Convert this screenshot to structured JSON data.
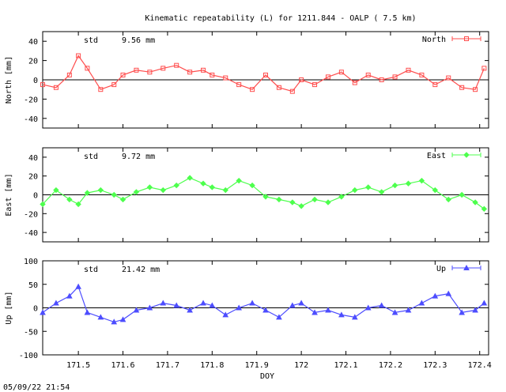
{
  "chart_data": {
    "type": "scatter",
    "title": "Kinematic repeatability (L) for 1211.844 - OALP  (  7.5 km)",
    "xlabel": "DOY",
    "footer": "05/09/22 21:54",
    "xlim": [
      171.42,
      172.42
    ],
    "xticks": [
      "171.5",
      "171.6",
      "171.7",
      "171.8",
      "171.9",
      "172",
      "172.1",
      "172.2",
      "172.3",
      "172.4"
    ],
    "xtick_values": [
      171.5,
      171.6,
      171.7,
      171.8,
      171.9,
      172.0,
      172.1,
      172.2,
      172.3,
      172.4
    ],
    "panels": [
      {
        "name": "North",
        "ylabel": "North [mm]",
        "ylim": [
          -50,
          50
        ],
        "yticks": [
          40,
          20,
          0,
          -20,
          -40
        ],
        "std_label": "std",
        "std_value": "9.56 mm",
        "color": "#ff4d4d",
        "marker": "square",
        "x": [
          171.42,
          171.45,
          171.48,
          171.5,
          171.52,
          171.55,
          171.58,
          171.6,
          171.63,
          171.66,
          171.69,
          171.72,
          171.75,
          171.78,
          171.8,
          171.83,
          171.86,
          171.89,
          171.92,
          171.95,
          171.98,
          172.0,
          172.03,
          172.06,
          172.09,
          172.12,
          172.15,
          172.18,
          172.21,
          172.24,
          172.27,
          172.3,
          172.33,
          172.36,
          172.39,
          172.41
        ],
        "y": [
          -5,
          -8,
          5,
          25,
          12,
          -10,
          -5,
          5,
          10,
          8,
          12,
          15,
          8,
          10,
          5,
          2,
          -5,
          -10,
          5,
          -8,
          -12,
          0,
          -5,
          3,
          8,
          -3,
          5,
          0,
          3,
          10,
          5,
          -5,
          2,
          -8,
          -10,
          12
        ]
      },
      {
        "name": "East",
        "ylabel": "East [mm]",
        "ylim": [
          -50,
          50
        ],
        "yticks": [
          40,
          20,
          0,
          -20,
          -40
        ],
        "std_label": "std",
        "std_value": "9.72 mm",
        "color": "#4dff4d",
        "marker": "diamond",
        "x": [
          171.42,
          171.45,
          171.48,
          171.5,
          171.52,
          171.55,
          171.58,
          171.6,
          171.63,
          171.66,
          171.69,
          171.72,
          171.75,
          171.78,
          171.8,
          171.83,
          171.86,
          171.89,
          171.92,
          171.95,
          171.98,
          172.0,
          172.03,
          172.06,
          172.09,
          172.12,
          172.15,
          172.18,
          172.21,
          172.24,
          172.27,
          172.3,
          172.33,
          172.36,
          172.39,
          172.41
        ],
        "y": [
          -10,
          5,
          -5,
          -10,
          2,
          5,
          0,
          -5,
          3,
          8,
          5,
          10,
          18,
          12,
          8,
          5,
          15,
          10,
          -2,
          -5,
          -8,
          -12,
          -5,
          -8,
          -2,
          5,
          8,
          3,
          10,
          12,
          15,
          5,
          -5,
          0,
          -8,
          -15
        ]
      },
      {
        "name": "Up",
        "ylabel": "Up [mm]",
        "ylim": [
          -100,
          100
        ],
        "yticks": [
          100,
          50,
          0,
          -50,
          -100
        ],
        "std_label": "std",
        "std_value": "21.42 mm",
        "color": "#4d4dff",
        "marker": "triangle",
        "x": [
          171.42,
          171.45,
          171.48,
          171.5,
          171.52,
          171.55,
          171.58,
          171.6,
          171.63,
          171.66,
          171.69,
          171.72,
          171.75,
          171.78,
          171.8,
          171.83,
          171.86,
          171.89,
          171.92,
          171.95,
          171.98,
          172.0,
          172.03,
          172.06,
          172.09,
          172.12,
          172.15,
          172.18,
          172.21,
          172.24,
          172.27,
          172.3,
          172.33,
          172.36,
          172.39,
          172.41
        ],
        "y": [
          -10,
          10,
          25,
          45,
          -10,
          -20,
          -30,
          -25,
          -5,
          0,
          10,
          5,
          -5,
          10,
          5,
          -15,
          0,
          10,
          -5,
          -20,
          5,
          10,
          -10,
          -5,
          -15,
          -20,
          0,
          5,
          -10,
          -5,
          10,
          25,
          30,
          -10,
          -5,
          10
        ]
      }
    ]
  }
}
